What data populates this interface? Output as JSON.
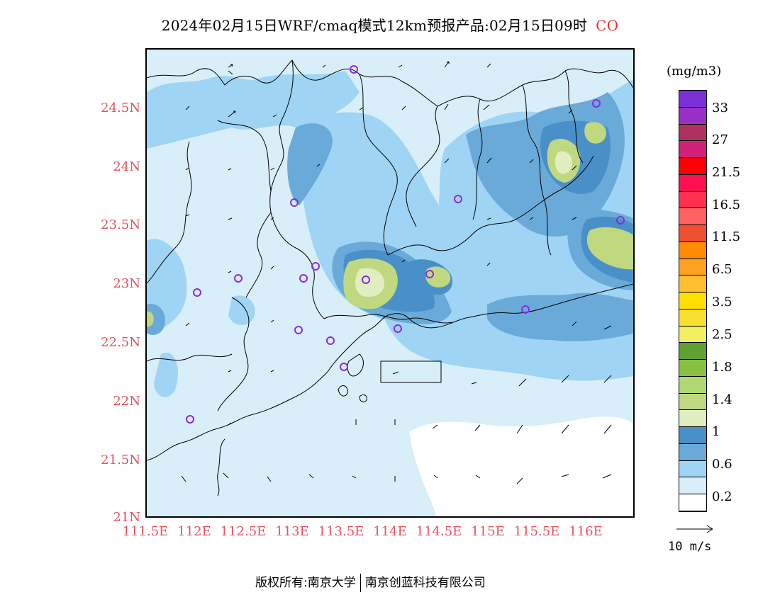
{
  "title": {
    "text": "2024年02月15日WRF/cmaq模式12km预报产品:02月15日09时",
    "species": "CO"
  },
  "axes": {
    "lat_ticks": [
      "24.5N",
      "24N",
      "23.5N",
      "23N",
      "22.5N",
      "22N",
      "21.5N",
      "21N"
    ],
    "lon_ticks": [
      "111.5E",
      "112E",
      "112.5E",
      "113E",
      "113.5E",
      "114E",
      "114.5E",
      "115E",
      "115.5E",
      "116E"
    ]
  },
  "legend": {
    "unit": "(mg/m3)",
    "colors": [
      "#7b2fd8",
      "#9b30c8",
      "#b03060",
      "#d0207a",
      "#ff0000",
      "#ff1050",
      "#ff3050",
      "#ff6060",
      "#f05030",
      "#ff8c00",
      "#ffa020",
      "#ffc030",
      "#ffe000",
      "#f8e030",
      "#f0f060",
      "#60a030",
      "#88c040",
      "#b0d870",
      "#c0d880",
      "#e0eec0",
      "#4a90c8",
      "#6aaad8",
      "#a0d4f4",
      "#d8eef9",
      "#ffffff"
    ],
    "labels": [
      "33",
      "27",
      "21.5",
      "16.5",
      "11.5",
      "6.5",
      "3.5",
      "2.5",
      "1.8",
      "1.4",
      "1",
      "0.6",
      "0.2"
    ]
  },
  "wind_reference": {
    "label": "10  m/s"
  },
  "footer": {
    "left": "版权所有:南京大学",
    "right": "南京创蓝科技有限公司"
  }
}
